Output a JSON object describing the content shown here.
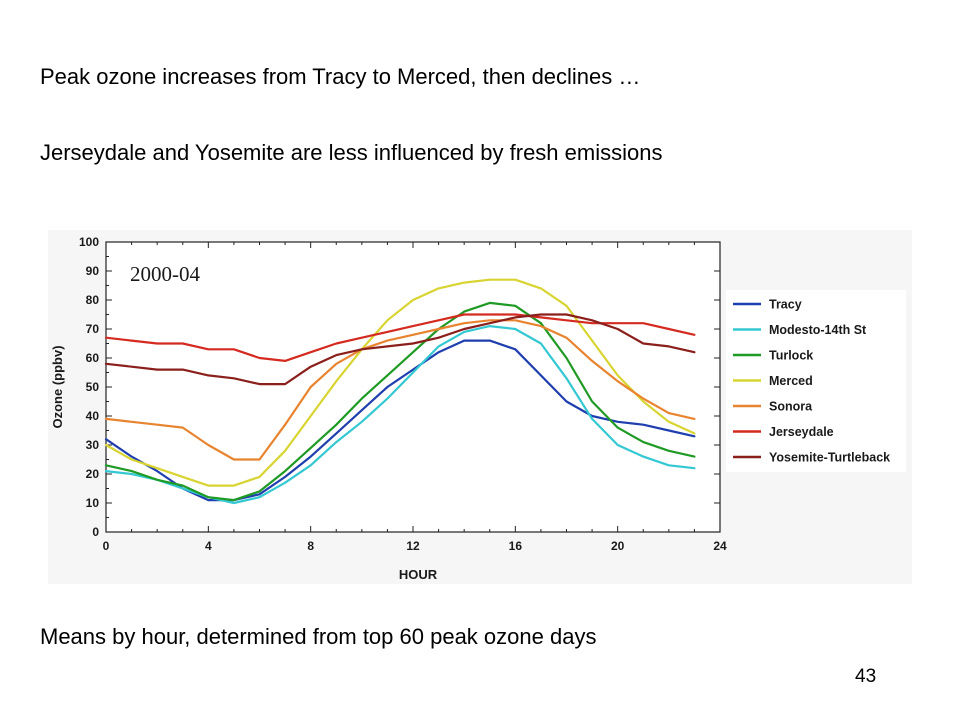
{
  "slide": {
    "heading1": "Peak ozone increases from Tracy to Merced, then declines …",
    "heading2": "Jerseydale and Yosemite are less influenced by fresh emissions",
    "caption": "Means by hour, determined from top 60 peak ozone days",
    "slide_number": "43"
  },
  "chart_data": {
    "type": "line",
    "annotation": "2000-04",
    "xlabel": "HOUR",
    "ylabel": "Ozone (ppbv)",
    "xlim": [
      0,
      24
    ],
    "ylim": [
      0,
      100
    ],
    "x_ticks": [
      0,
      4,
      8,
      12,
      16,
      20,
      24
    ],
    "y_ticks": [
      0,
      10,
      20,
      30,
      40,
      50,
      60,
      70,
      80,
      90,
      100
    ],
    "grid": false,
    "legend_position": "right",
    "x": [
      0,
      1,
      2,
      3,
      4,
      5,
      6,
      7,
      8,
      9,
      10,
      11,
      12,
      13,
      14,
      15,
      16,
      17,
      18,
      19,
      20,
      21,
      22,
      23
    ],
    "series": [
      {
        "name": "Tracy",
        "color": "#1f3fae",
        "values": [
          32,
          26,
          21,
          15,
          11,
          11,
          13,
          19,
          26,
          34,
          42,
          50,
          56,
          62,
          66,
          66,
          63,
          54,
          45,
          40,
          38,
          37,
          35,
          33
        ]
      },
      {
        "name": "Modesto-14th St",
        "color": "#33c8d2",
        "values": [
          21,
          20,
          18,
          15,
          12,
          10,
          12,
          17,
          23,
          31,
          38,
          46,
          55,
          64,
          69,
          71,
          70,
          65,
          53,
          39,
          30,
          26,
          23,
          22
        ]
      },
      {
        "name": "Turlock",
        "color": "#1f9a24",
        "values": [
          23,
          21,
          18,
          16,
          12,
          11,
          14,
          21,
          29,
          37,
          46,
          54,
          62,
          70,
          76,
          79,
          78,
          72,
          60,
          45,
          36,
          31,
          28,
          26
        ]
      },
      {
        "name": "Merced",
        "color": "#d8d431",
        "values": [
          30,
          25,
          22,
          19,
          16,
          16,
          19,
          28,
          40,
          52,
          63,
          73,
          80,
          84,
          86,
          87,
          87,
          84,
          78,
          66,
          54,
          45,
          38,
          34
        ]
      },
      {
        "name": "Sonora",
        "color": "#e8842f",
        "values": [
          39,
          38,
          37,
          36,
          30,
          25,
          25,
          37,
          50,
          58,
          63,
          66,
          68,
          70,
          72,
          73,
          73,
          71,
          67,
          59,
          52,
          46,
          41,
          39
        ]
      },
      {
        "name": "Jerseydale",
        "color": "#d42a20",
        "values": [
          67,
          66,
          65,
          65,
          63,
          63,
          60,
          59,
          62,
          65,
          67,
          69,
          71,
          73,
          75,
          75,
          75,
          74,
          73,
          72,
          72,
          72,
          70,
          68
        ]
      },
      {
        "name": "Yosemite-Turtleback",
        "color": "#8a1f1c",
        "values": [
          58,
          57,
          56,
          56,
          54,
          53,
          51,
          51,
          57,
          61,
          63,
          64,
          65,
          67,
          70,
          72,
          74,
          75,
          75,
          73,
          70,
          65,
          64,
          62
        ]
      }
    ]
  }
}
